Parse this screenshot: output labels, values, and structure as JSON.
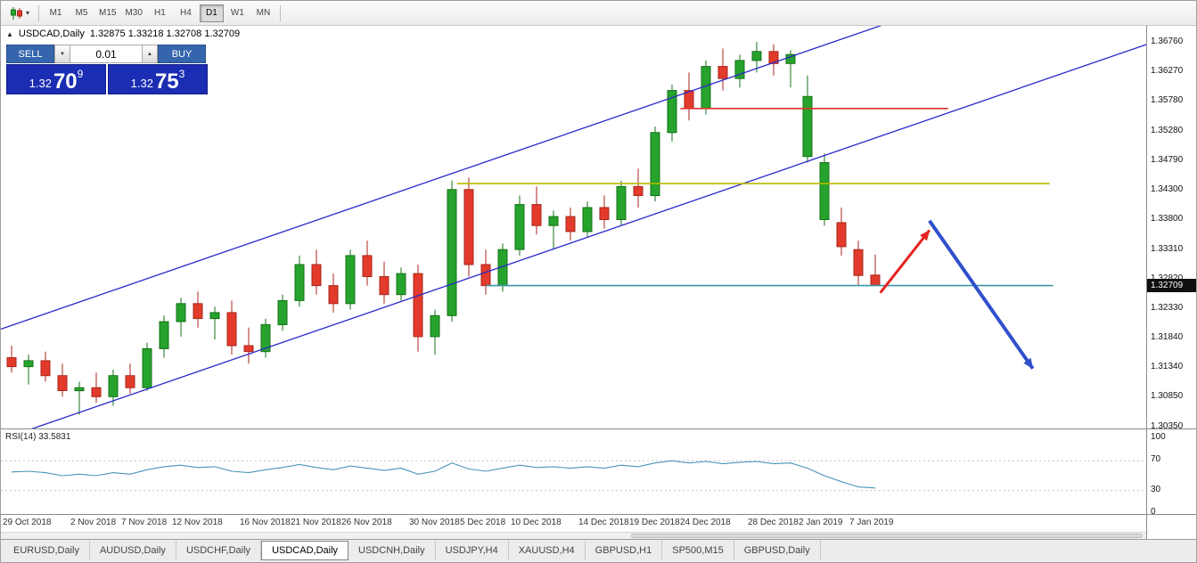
{
  "toolbar": {
    "timeframes": [
      "M1",
      "M5",
      "M15",
      "M30",
      "H1",
      "H4",
      "D1",
      "W1",
      "MN"
    ],
    "active_timeframe": "D1"
  },
  "icons": {
    "dropdown": "▾",
    "volume_down": "▼",
    "volume_up": "▲",
    "collapse": "▲"
  },
  "chart": {
    "symbol": "USDCAD,Daily",
    "ohlc_display": "1.32875 1.33218 1.32708 1.32709"
  },
  "trade_panel": {
    "sell_label": "SELL",
    "buy_label": "BUY",
    "volume": "0.01",
    "sell_quote": {
      "prefix": "1.32",
      "big": "70",
      "sup": "9"
    },
    "buy_quote": {
      "prefix": "1.32",
      "big": "75",
      "sup": "3"
    },
    "button_color": "#3566ad",
    "quote_color": "#1b2db3"
  },
  "price_axis": {
    "labels": [
      "1.36760",
      "1.36270",
      "1.35780",
      "1.35280",
      "1.34790",
      "1.34300",
      "1.33800",
      "1.33310",
      "1.32820",
      "1.32330",
      "1.31840",
      "1.31340",
      "1.30850",
      "1.30350"
    ],
    "current_price": "1.32709"
  },
  "rsi": {
    "label": "RSI(14) 33.5831",
    "axis_labels": [
      "100",
      "70",
      "30",
      "0"
    ],
    "levels": [
      70,
      30
    ],
    "value": 33.5831,
    "line_color": "#4a94b8"
  },
  "tabs": {
    "items": [
      "EURUSD,Daily",
      "AUDUSD,Daily",
      "USDCHF,Daily",
      "USDCAD,Daily",
      "USDCNH,Daily",
      "USDJPY,H4",
      "XAUUSD,H4",
      "GBPUSD,H1",
      "SP500,M15",
      "GBPUSD,Daily"
    ],
    "active": "USDCAD,Daily"
  },
  "chart_data": {
    "type": "candlestick",
    "title": "USDCAD,Daily",
    "ylim": [
      1.3008,
      1.3703
    ],
    "grid": false,
    "legend": "none",
    "colors": {
      "up": "#26a32c",
      "up_border": "#157019",
      "down": "#e23a2b",
      "down_border": "#a8261b"
    },
    "dates": [
      {
        "i": 0,
        "label": "29 Oct 2018"
      },
      {
        "i": 4,
        "label": "2 Nov 2018"
      },
      {
        "i": 7,
        "label": "7 Nov 2018"
      },
      {
        "i": 10,
        "label": "12 Nov 2018"
      },
      {
        "i": 14,
        "label": "16 Nov 2018"
      },
      {
        "i": 17,
        "label": "21 Nov 2018"
      },
      {
        "i": 20,
        "label": "26 Nov 2018"
      },
      {
        "i": 24,
        "label": "30 Nov 2018"
      },
      {
        "i": 27,
        "label": "5 Dec 2018"
      },
      {
        "i": 30,
        "label": "10 Dec 2018"
      },
      {
        "i": 34,
        "label": "14 Dec 2018"
      },
      {
        "i": 37,
        "label": "19 Dec 2018"
      },
      {
        "i": 40,
        "label": "24 Dec 2018"
      },
      {
        "i": 44,
        "label": "28 Dec 2018"
      },
      {
        "i": 47,
        "label": "2 Jan 2019"
      },
      {
        "i": 50,
        "label": "7 Jan 2019"
      }
    ],
    "ohlc": [
      [
        1.315,
        1.317,
        1.3125,
        1.3135
      ],
      [
        1.3135,
        1.3155,
        1.3105,
        1.3145
      ],
      [
        1.3145,
        1.316,
        1.311,
        1.312
      ],
      [
        1.312,
        1.314,
        1.3085,
        1.3095
      ],
      [
        1.3095,
        1.311,
        1.3055,
        1.31
      ],
      [
        1.31,
        1.3125,
        1.3075,
        1.3085
      ],
      [
        1.3085,
        1.313,
        1.307,
        1.312
      ],
      [
        1.312,
        1.314,
        1.309,
        1.31
      ],
      [
        1.31,
        1.3175,
        1.3095,
        1.3165
      ],
      [
        1.3165,
        1.322,
        1.315,
        1.321
      ],
      [
        1.321,
        1.325,
        1.3185,
        1.324
      ],
      [
        1.324,
        1.326,
        1.32,
        1.3215
      ],
      [
        1.3215,
        1.3235,
        1.318,
        1.3225
      ],
      [
        1.3225,
        1.3245,
        1.3155,
        1.317
      ],
      [
        1.317,
        1.32,
        1.314,
        1.316
      ],
      [
        1.316,
        1.3215,
        1.315,
        1.3205
      ],
      [
        1.3205,
        1.3255,
        1.3195,
        1.3245
      ],
      [
        1.3245,
        1.332,
        1.3235,
        1.3305
      ],
      [
        1.3305,
        1.333,
        1.3255,
        1.327
      ],
      [
        1.327,
        1.329,
        1.3225,
        1.324
      ],
      [
        1.324,
        1.333,
        1.323,
        1.332
      ],
      [
        1.332,
        1.3345,
        1.327,
        1.3285
      ],
      [
        1.3285,
        1.331,
        1.324,
        1.3255
      ],
      [
        1.3255,
        1.33,
        1.3245,
        1.329
      ],
      [
        1.329,
        1.3305,
        1.316,
        1.3185
      ],
      [
        1.3185,
        1.323,
        1.3155,
        1.322
      ],
      [
        1.322,
        1.3445,
        1.321,
        1.343
      ],
      [
        1.343,
        1.345,
        1.3285,
        1.3305
      ],
      [
        1.3305,
        1.333,
        1.3255,
        1.327
      ],
      [
        1.327,
        1.334,
        1.326,
        1.333
      ],
      [
        1.333,
        1.342,
        1.332,
        1.3405
      ],
      [
        1.3405,
        1.3435,
        1.3355,
        1.337
      ],
      [
        1.337,
        1.3395,
        1.333,
        1.3385
      ],
      [
        1.3385,
        1.34,
        1.3345,
        1.336
      ],
      [
        1.336,
        1.341,
        1.335,
        1.34
      ],
      [
        1.34,
        1.342,
        1.3365,
        1.338
      ],
      [
        1.338,
        1.3445,
        1.337,
        1.3435
      ],
      [
        1.3435,
        1.3465,
        1.34,
        1.342
      ],
      [
        1.342,
        1.3535,
        1.341,
        1.3525
      ],
      [
        1.3525,
        1.3605,
        1.351,
        1.3595
      ],
      [
        1.3595,
        1.3625,
        1.3545,
        1.3565
      ],
      [
        1.3565,
        1.3645,
        1.3555,
        1.3635
      ],
      [
        1.3635,
        1.3665,
        1.3595,
        1.3615
      ],
      [
        1.3615,
        1.3655,
        1.36,
        1.3645
      ],
      [
        1.3645,
        1.3676,
        1.3625,
        1.366
      ],
      [
        1.366,
        1.3672,
        1.362,
        1.364
      ],
      [
        1.364,
        1.3662,
        1.36,
        1.3655
      ],
      [
        1.3485,
        1.362,
        1.3475,
        1.3585
      ],
      [
        1.338,
        1.349,
        1.337,
        1.3475
      ],
      [
        1.3375,
        1.34,
        1.332,
        1.3335
      ],
      [
        1.333,
        1.3345,
        1.327,
        1.3287
      ],
      [
        1.32875,
        1.33218,
        1.32708,
        1.32709
      ]
    ],
    "rsi_values": [
      55,
      56,
      54,
      50,
      52,
      50,
      54,
      52,
      58,
      62,
      64,
      61,
      62,
      56,
      54,
      58,
      61,
      65,
      61,
      58,
      63,
      60,
      57,
      60,
      52,
      56,
      67,
      59,
      56,
      60,
      64,
      61,
      62,
      60,
      62,
      60,
      64,
      62,
      67,
      70,
      67,
      69,
      66,
      68,
      69,
      66,
      67,
      60,
      50,
      42,
      35,
      33.58
    ],
    "trendlines": [
      {
        "name": "channel-upper",
        "i1": -1,
        "p1": 1.3194,
        "i2": 58,
        "p2": 1.3768,
        "color": "#2929cc",
        "w": 1.3
      },
      {
        "name": "channel-lower",
        "i1": -1,
        "p1": 1.301,
        "i2": 69,
        "p2": 1.3691,
        "color": "#2929cc",
        "w": 1.3
      },
      {
        "name": "resistance-red",
        "i1": 39.5,
        "p1": 1.3565,
        "i2": 55.3,
        "p2": 1.3565,
        "color": "#e03030",
        "w": 1.6
      },
      {
        "name": "resistance-yellow",
        "i1": 26.3,
        "p1": 1.344,
        "i2": 61.3,
        "p2": 1.344,
        "color": "#b8b800",
        "w": 1.6
      },
      {
        "name": "support-teal",
        "i1": 28.0,
        "p1": 1.327,
        "i2": 61.5,
        "p2": 1.327,
        "color": "#3e95a8",
        "w": 1.6
      }
    ],
    "arrows": [
      {
        "name": "bullish-scenario-arrow",
        "i1": 51.3,
        "p1": 1.3258,
        "i2": 54.2,
        "p2": 1.3362,
        "color": "#e5241f",
        "w": 3
      },
      {
        "name": "bearish-scenario-arrow",
        "i1": 54.2,
        "p1": 1.3378,
        "i2": 60.3,
        "p2": 1.3132,
        "color": "#3050cc",
        "w": 4
      }
    ]
  }
}
